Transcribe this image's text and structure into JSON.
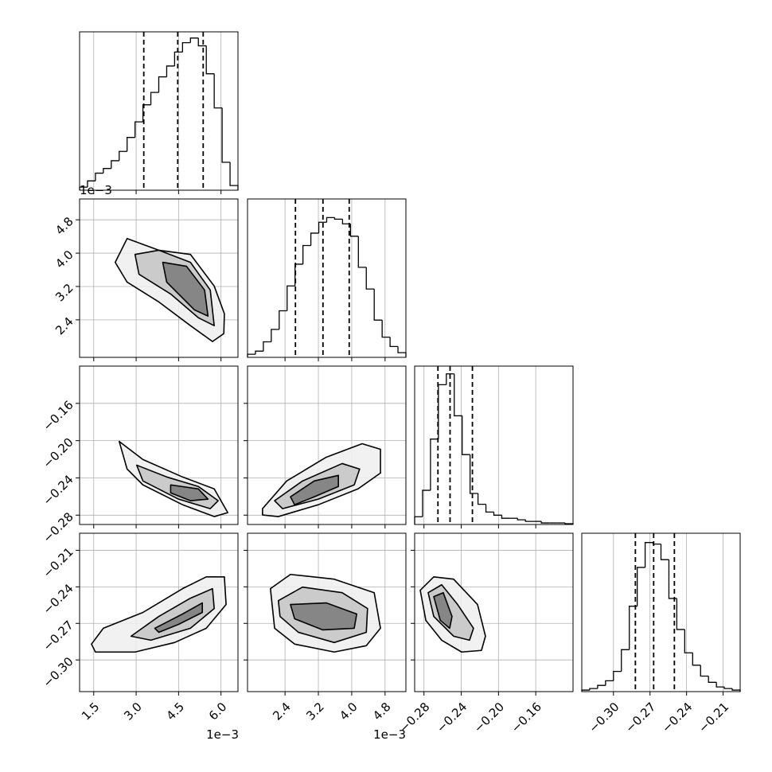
{
  "chart_data": {
    "type": "corner",
    "params": [
      {
        "xlim": [
          1.0,
          6.6
        ],
        "xticks": [
          1.5,
          {
            "value": 3,
            "label": "3.0"
          },
          4.5,
          {
            "value": 6,
            "label": "6.0"
          }
        ],
        "offset": "1e−3",
        "ylim": [
          0,
          1.02
        ],
        "bins": [
          1.0,
          1.28,
          1.56,
          1.84,
          2.12,
          2.4,
          2.68,
          2.96,
          3.24,
          3.52,
          3.8,
          4.08,
          4.36,
          4.64,
          4.92,
          5.2,
          5.48,
          5.76,
          6.04,
          6.32,
          6.6
        ],
        "counts": [
          0.02,
          0.06,
          0.11,
          0.14,
          0.19,
          0.25,
          0.34,
          0.44,
          0.55,
          0.63,
          0.73,
          0.8,
          0.89,
          0.95,
          0.98,
          0.93,
          0.75,
          0.53,
          0.18,
          0.03
        ],
        "quantiles": [
          3.27,
          4.47,
          5.37
        ]
      },
      {
        "xlim": [
          1.5,
          5.3
        ],
        "xticks": [
          2.4,
          3.2,
          {
            "value": 4,
            "label": "4.0"
          },
          4.8
        ],
        "offset": "1e−3",
        "ylim": [
          0,
          1.02
        ],
        "bins": [
          1.5,
          1.69,
          1.88,
          2.07,
          2.26,
          2.45,
          2.64,
          2.83,
          3.02,
          3.21,
          3.4,
          3.59,
          3.78,
          3.97,
          4.16,
          4.35,
          4.54,
          4.73,
          4.92,
          5.11,
          5.3
        ],
        "counts": [
          0.02,
          0.04,
          0.1,
          0.18,
          0.3,
          0.46,
          0.6,
          0.72,
          0.8,
          0.87,
          0.9,
          0.89,
          0.86,
          0.78,
          0.58,
          0.44,
          0.24,
          0.13,
          0.07,
          0.03
        ],
        "quantiles": [
          2.65,
          3.31,
          3.94
        ]
      },
      {
        "xlim": [
          -0.29,
          -0.12
        ],
        "xticks": [
          {
            "value": -0.28,
            "label": "−0.28"
          },
          {
            "value": -0.24,
            "label": "−0.24"
          },
          {
            "value": -0.2,
            "label": "−0.20"
          },
          {
            "value": -0.16,
            "label": "−0.16"
          }
        ],
        "ylim": [
          0,
          1.02
        ],
        "bins": [
          -0.29,
          -0.2815,
          -0.273,
          -0.2645,
          -0.256,
          -0.2475,
          -0.239,
          -0.2305,
          -0.222,
          -0.2135,
          -0.205,
          -0.1965,
          -0.188,
          -0.1795,
          -0.171,
          -0.1625,
          -0.154,
          -0.1455,
          -0.137,
          -0.1285,
          -0.12
        ],
        "counts": [
          0.05,
          0.22,
          0.55,
          0.9,
          0.97,
          0.7,
          0.45,
          0.2,
          0.13,
          0.08,
          0.06,
          0.04,
          0.04,
          0.03,
          0.02,
          0.02,
          0.01,
          0.01,
          0.01,
          0.005
        ],
        "quantiles": [
          -0.265,
          -0.252,
          -0.228
        ]
      },
      {
        "xlim": [
          -0.326,
          -0.196
        ],
        "xticks": [
          {
            "value": -0.3,
            "label": "−0.30"
          },
          {
            "value": -0.27,
            "label": "−0.27"
          },
          {
            "value": -0.24,
            "label": "−0.24"
          },
          {
            "value": -0.21,
            "label": "−0.21"
          }
        ],
        "ylim": [
          0,
          1.02
        ],
        "bins": [
          -0.326,
          -0.3195,
          -0.313,
          -0.3065,
          -0.3,
          -0.2935,
          -0.287,
          -0.2805,
          -0.274,
          -0.2675,
          -0.261,
          -0.2545,
          -0.248,
          -0.2415,
          -0.235,
          -0.2285,
          -0.222,
          -0.2155,
          -0.209,
          -0.2025,
          -0.196
        ],
        "counts": [
          0.01,
          0.02,
          0.04,
          0.07,
          0.13,
          0.27,
          0.55,
          0.8,
          0.96,
          0.95,
          0.85,
          0.6,
          0.4,
          0.25,
          0.17,
          0.1,
          0.06,
          0.03,
          0.02,
          0.01
        ],
        "quantiles": [
          -0.282,
          -0.267,
          -0.25
        ]
      }
    ],
    "pairs": [
      {
        "contours": [
          {
            "fill": "#eeeeee",
            "x": [
              2.26,
              2.68,
              3.8,
              4.92,
              5.76,
              6.12,
              6.1,
              5.7,
              4.92,
              3.8,
              2.68
            ],
            "y": [
              3.78,
              4.35,
              4.07,
              3.97,
              3.21,
              2.545,
              2.07,
              1.88,
              2.26,
              2.83,
              3.305
            ]
          },
          {
            "fill": "#c4c4c4",
            "x": [
              2.96,
              3.8,
              4.92,
              5.62,
              5.76,
              5.2,
              4.22,
              3.1
            ],
            "y": [
              3.97,
              4.07,
              3.78,
              3.115,
              2.26,
              2.45,
              3.02,
              3.495
            ]
          },
          {
            "fill": "#7a7a7a",
            "x": [
              3.94,
              4.78,
              5.42,
              5.54,
              5.06,
              4.08
            ],
            "y": [
              3.78,
              3.685,
              3.115,
              2.49,
              2.64,
              3.305
            ]
          }
        ]
      },
      {
        "contours": [
          {
            "fill": "#eeeeee",
            "x": [
              2.4,
              3.24,
              4.64,
              5.76,
              6.24,
              5.76,
              4.64,
              3.24,
              2.68
            ],
            "y": [
              -0.2008,
              -0.2203,
              -0.239,
              -0.2518,
              -0.2773,
              -0.2815,
              -0.2688,
              -0.2475,
              -0.2305
            ]
          },
          {
            "fill": "#c4c4c4",
            "x": [
              3.02,
              4.08,
              5.2,
              5.9,
              5.62,
              4.5,
              3.24
            ],
            "y": [
              -0.2263,
              -0.239,
              -0.2492,
              -0.2645,
              -0.273,
              -0.2628,
              -0.2433
            ]
          },
          {
            "fill": "#7a7a7a",
            "x": [
              4.22,
              5.2,
              5.54,
              4.92,
              4.22
            ],
            "y": [
              -0.2475,
              -0.2518,
              -0.2628,
              -0.2645,
              -0.256
            ]
          }
        ]
      },
      {
        "contours": [
          {
            "fill": "#eeeeee",
            "x": [
              1.86,
              2.44,
              3.39,
              4.25,
              4.69,
              4.69,
              4.15,
              3.2,
              2.24,
              1.86
            ],
            "y": [
              -0.273,
              -0.2433,
              -0.2178,
              -0.2033,
              -0.2093,
              -0.2348,
              -0.2518,
              -0.2688,
              -0.2815,
              -0.2798
            ]
          },
          {
            "fill": "#c4c4c4",
            "x": [
              2.15,
              2.82,
              3.77,
              4.19,
              4.06,
              3.2,
              2.34
            ],
            "y": [
              -0.2645,
              -0.2433,
              -0.2246,
              -0.2305,
              -0.2475,
              -0.2628,
              -0.273
            ]
          },
          {
            "fill": "#7a7a7a",
            "x": [
              2.53,
              3.1,
              3.68,
              3.68,
              3.1,
              2.63
            ],
            "y": [
              -0.2603,
              -0.2433,
              -0.2373,
              -0.2492,
              -0.2603,
              -0.2688
            ]
          }
        ]
      },
      {
        "contours": [
          {
            "fill": "#eeeeee",
            "x": [
              1.42,
              1.84,
              3.24,
              4.64,
              5.48,
              6.12,
              6.18,
              5.48,
              4.36,
              2.96,
              1.56
            ],
            "y": [
              -0.287,
              -0.274,
              -0.261,
              -0.2415,
              -0.2318,
              -0.2318,
              -0.2545,
              -0.274,
              -0.2857,
              -0.2935,
              -0.2935
            ]
          },
          {
            "fill": "#c4c4c4",
            "x": [
              2.82,
              3.8,
              4.92,
              5.7,
              5.76,
              4.92,
              3.52
            ],
            "y": [
              -0.2805,
              -0.2643,
              -0.2493,
              -0.2415,
              -0.2578,
              -0.274,
              -0.2838
            ]
          },
          {
            "fill": "#7a7a7a",
            "x": [
              3.66,
              4.64,
              5.34,
              5.34,
              4.5,
              3.8
            ],
            "y": [
              -0.274,
              -0.2623,
              -0.2532,
              -0.261,
              -0.2708,
              -0.2773
            ]
          }
        ]
      },
      {
        "contours": [
          {
            "fill": "#eeeeee",
            "x": [
              2.05,
              2.53,
              3.58,
              4.54,
              4.69,
              4.35,
              3.58,
              2.63,
              2.15
            ],
            "y": [
              -0.2415,
              -0.2298,
              -0.2337,
              -0.2448,
              -0.274,
              -0.2883,
              -0.2935,
              -0.287,
              -0.274
            ]
          },
          {
            "fill": "#c4c4c4",
            "x": [
              2.24,
              2.82,
              3.77,
              4.38,
              4.35,
              3.58,
              2.72,
              2.28
            ],
            "y": [
              -0.2513,
              -0.2402,
              -0.2448,
              -0.2578,
              -0.2773,
              -0.2857,
              -0.2773,
              -0.2643
            ]
          },
          {
            "fill": "#7a7a7a",
            "x": [
              2.53,
              3.39,
              4.12,
              4.06,
              3.3,
              2.63
            ],
            "y": [
              -0.2545,
              -0.2532,
              -0.2623,
              -0.274,
              -0.2753,
              -0.2662
            ]
          }
        ]
      },
      {
        "contours": [
          {
            "fill": "#eeeeee",
            "x": [
              -0.284,
              -0.2695,
              -0.2482,
              -0.2225,
              -0.214,
              -0.2183,
              -0.2396,
              -0.261,
              -0.278
            ],
            "y": [
              -0.2428,
              -0.2318,
              -0.2337,
              -0.2545,
              -0.2805,
              -0.2922,
              -0.2935,
              -0.2838,
              -0.2675
            ]
          },
          {
            "fill": "#c4c4c4",
            "x": [
              -0.2755,
              -0.261,
              -0.2439,
              -0.2268,
              -0.2311,
              -0.2482,
              -0.2695
            ],
            "y": [
              -0.2448,
              -0.2383,
              -0.2545,
              -0.274,
              -0.2838,
              -0.2805,
              -0.2643
            ]
          },
          {
            "fill": "#7a7a7a",
            "x": [
              -0.2695,
              -0.2593,
              -0.2499,
              -0.2524,
              -0.2625
            ],
            "y": [
              -0.248,
              -0.2448,
              -0.2643,
              -0.274,
              -0.2675
            ]
          }
        ]
      }
    ]
  }
}
